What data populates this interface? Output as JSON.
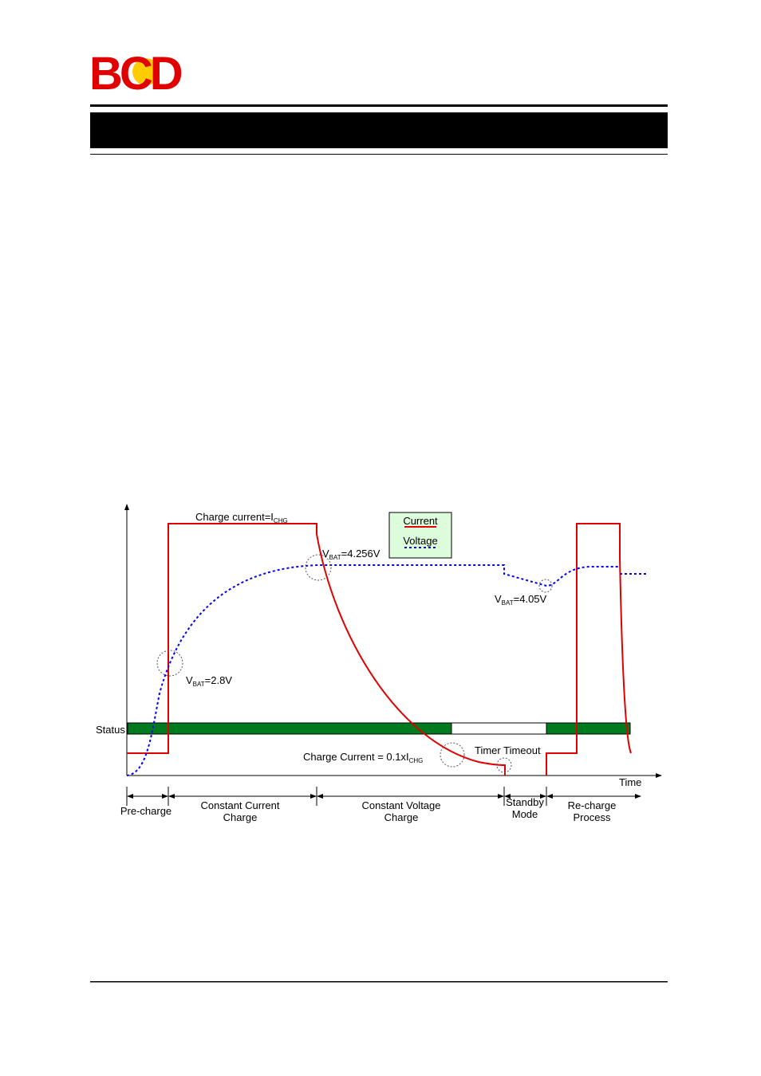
{
  "header": {
    "logo": "BCD"
  },
  "diagram": {
    "charge_current": {
      "main": "Charge current=I",
      "sub": "CHG"
    },
    "legend": {
      "current": "Current",
      "voltage": "Voltage"
    },
    "vbat_high": {
      "pre": "V",
      "sub": "BAT",
      "post": "=4.256V"
    },
    "vbat_recharge": {
      "pre": "V",
      "sub": "BAT",
      "post": "=4.05V"
    },
    "vbat_low": {
      "pre": "V",
      "sub": "BAT",
      "post": "=2.8V"
    },
    "status": "Status",
    "charge_current_end": {
      "main": "Charge Current = 0.1xI",
      "sub": "CHG"
    },
    "timer_timeout": "Timer Timeout",
    "time": "Time",
    "phases": [
      [
        "Pre-charge"
      ],
      [
        "Constant Current",
        "Charge"
      ],
      [
        "Constant Voltage",
        "Charge"
      ],
      [
        "Standby",
        "Mode"
      ],
      [
        "Re-charge",
        "Process"
      ]
    ]
  }
}
